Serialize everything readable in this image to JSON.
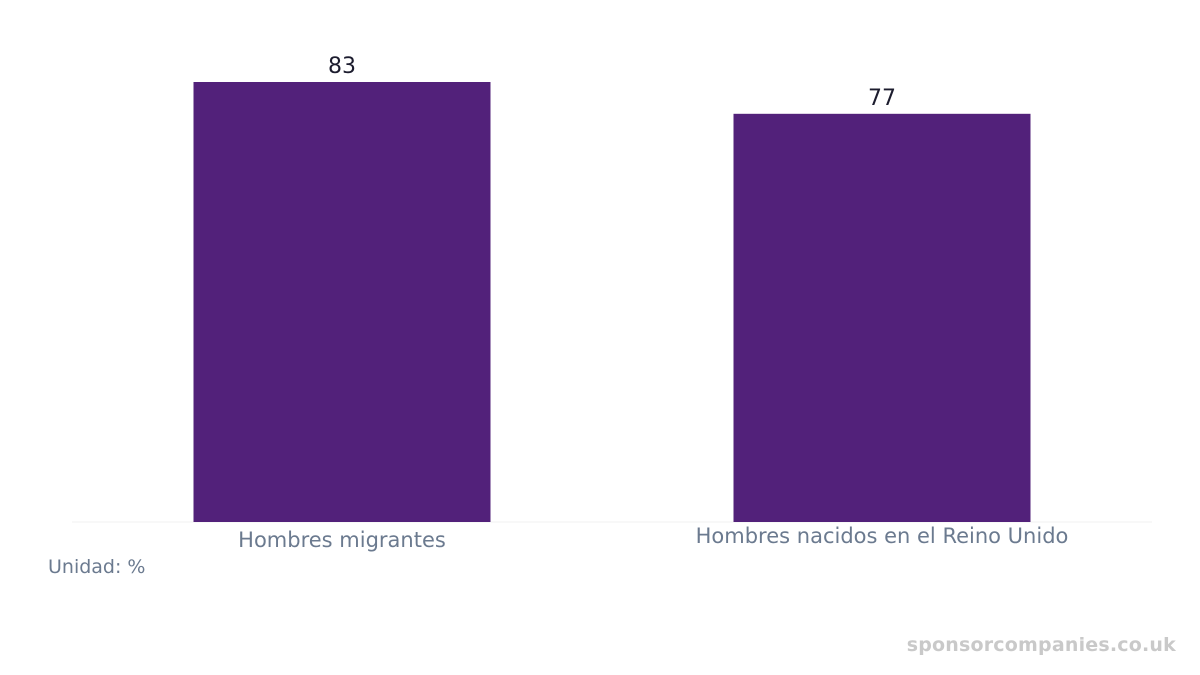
{
  "chart_data": {
    "type": "bar",
    "categories": [
      "Hombres migrantes",
      "Hombres nacidos en el Reino Unido"
    ],
    "values": [
      83,
      77
    ],
    "title": "",
    "xlabel": "",
    "ylabel": "",
    "ylim": [
      0,
      83
    ],
    "grid": false,
    "bar_color": "#52217a",
    "label_color": "#1c1c2e",
    "tick_label_color": "#6b7a8f"
  },
  "unit_note": "Unidad: %",
  "watermark": "sponsorcompanies.co.uk"
}
